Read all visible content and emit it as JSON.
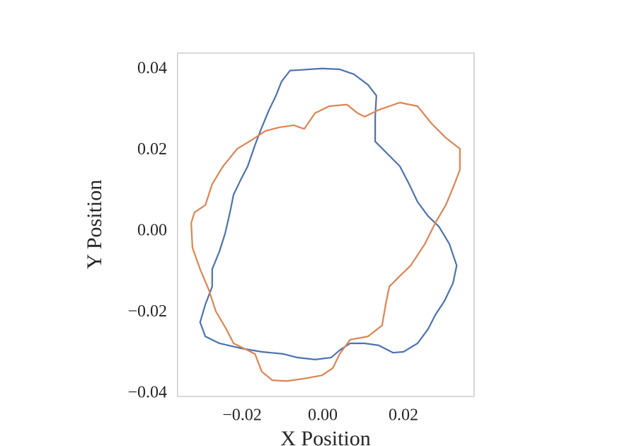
{
  "chart_data": {
    "type": "line",
    "x_label": "X Position",
    "y_label": "Y Position",
    "xlim": [
      -0.036,
      0.0375
    ],
    "ylim": [
      -0.0407,
      0.044
    ],
    "xticks": [
      {
        "value": -0.02,
        "label": "−0.02"
      },
      {
        "value": 0,
        "label": "0.00"
      },
      0.02
    ],
    "yticks": [
      {
        "value": -0.04,
        "label": "−0.04"
      },
      {
        "value": -0.02,
        "label": "−0.02"
      },
      {
        "value": 0,
        "label": "0.00"
      },
      0.02,
      0.04
    ],
    "grid": false,
    "series": [
      {
        "color": "#4c72b0",
        "x": [
          -0.0063,
          -0.0002,
          0.0042,
          0.0077,
          0.0112,
          0.0133,
          0.013,
          0.013,
          0.0156,
          0.0191,
          0.0214,
          0.0235,
          0.0261,
          0.0288,
          0.0314,
          0.0332,
          0.0323,
          0.0302,
          0.0279,
          0.0261,
          0.0235,
          0.02,
          0.0174,
          0.0139,
          0.0104,
          0.0068,
          0.0042,
          0.0021,
          -0.0019,
          -0.0063,
          -0.0098,
          -0.0151,
          -0.0204,
          -0.0256,
          -0.0291,
          -0.0304,
          -0.0291,
          -0.0274,
          -0.0274,
          -0.0256,
          -0.0242,
          -0.023,
          -0.0221,
          -0.0204,
          -0.0186,
          -0.0168,
          -0.0151,
          -0.0133,
          -0.0116,
          -0.0102,
          -0.0081,
          -0.0063
        ],
        "y": [
          0.0398,
          0.0402,
          0.04,
          0.0388,
          0.0362,
          0.0335,
          0.0283,
          0.0222,
          0.0196,
          0.0161,
          0.0117,
          0.0073,
          0.0038,
          0.0012,
          -0.0031,
          -0.0084,
          -0.0127,
          -0.0171,
          -0.0206,
          -0.0241,
          -0.0276,
          -0.0297,
          -0.0299,
          -0.0281,
          -0.0276,
          -0.0276,
          -0.0293,
          -0.0311,
          -0.0316,
          -0.0311,
          -0.0302,
          -0.0297,
          -0.0288,
          -0.0276,
          -0.0259,
          -0.0224,
          -0.018,
          -0.0136,
          -0.0093,
          -0.0049,
          -0.0005,
          0.0047,
          0.0091,
          0.0126,
          0.0161,
          0.0213,
          0.0257,
          0.03,
          0.0335,
          0.037,
          0.0397,
          0.0398
        ]
      },
      {
        "color": "#dd8452",
        "x": [
          -0.0326,
          -0.0318,
          -0.0291,
          -0.0274,
          -0.0247,
          -0.0212,
          -0.0177,
          -0.0142,
          -0.0107,
          -0.0072,
          -0.0046,
          -0.0019,
          0.0016,
          0.006,
          0.0086,
          0.0104,
          0.0139,
          0.0191,
          0.0235,
          0.027,
          0.0305,
          0.034,
          0.034,
          0.0323,
          0.0305,
          0.0279,
          0.0253,
          0.0218,
          0.0191,
          0.0165,
          0.0156,
          0.0147,
          0.0112,
          0.0068,
          0.0042,
          0.0025,
          -0.0002,
          -0.0046,
          -0.0089,
          -0.0125,
          -0.0151,
          -0.0168,
          -0.0221,
          -0.0239,
          -0.0265,
          -0.0282,
          -0.0304,
          -0.0323,
          -0.0326
        ],
        "y": [
          0.0021,
          0.0047,
          0.0065,
          0.0117,
          0.0161,
          0.0204,
          0.0225,
          0.0248,
          0.0257,
          0.0262,
          0.0253,
          0.0292,
          0.0309,
          0.0313,
          0.0292,
          0.0283,
          0.03,
          0.0318,
          0.0309,
          0.0266,
          0.0231,
          0.0204,
          0.0152,
          0.0108,
          0.0065,
          0.0021,
          -0.0031,
          -0.0084,
          -0.011,
          -0.0136,
          -0.018,
          -0.0232,
          -0.0259,
          -0.0267,
          -0.0302,
          -0.0337,
          -0.0355,
          -0.0363,
          -0.0369,
          -0.0367,
          -0.0346,
          -0.0302,
          -0.0276,
          -0.0241,
          -0.0197,
          -0.0145,
          -0.0093,
          -0.004,
          0.0021
        ]
      }
    ]
  }
}
